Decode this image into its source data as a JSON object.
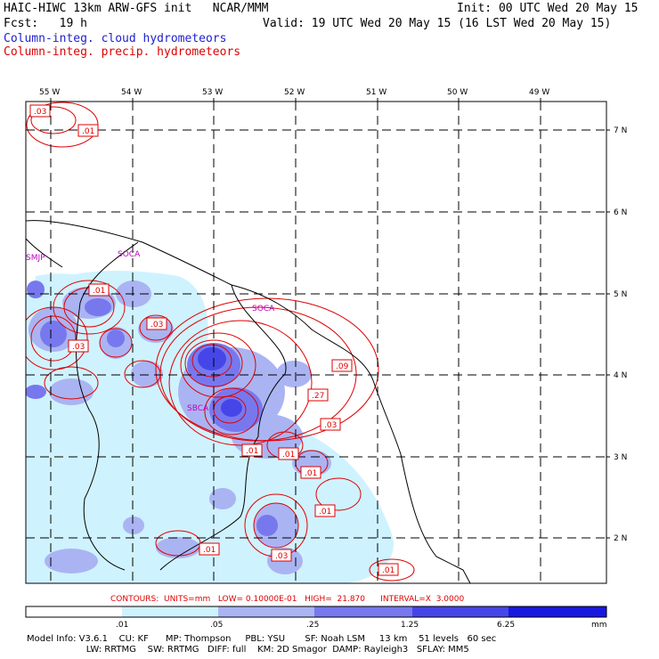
{
  "header": {
    "title_left": "HAIC-HIWC 13km ARW-GFS init   NCAR/MMM",
    "init": "Init: 00 UTC Wed 20 May 15",
    "fcst": "Fcst:   19 h",
    "valid": "Valid: 19 UTC Wed 20 May 15 (16 LST Wed 20 May 15)",
    "field1": "Column-integ. cloud hydrometeors",
    "field2": "Column-integ. precip. hydrometeors"
  },
  "map": {
    "lon_labels": [
      "55 W",
      "54 W",
      "53 W",
      "52 W",
      "51 W",
      "50 W",
      "49 W"
    ],
    "lat_labels": [
      "7 N",
      "6 N",
      "5 N",
      "4 N",
      "3 N",
      "2 N"
    ],
    "station_labels": [
      "SMJP",
      "SOCA",
      "SOCA",
      "SBCA"
    ],
    "contour_labels": [
      ".03",
      ".01",
      ".01",
      ".03",
      ".03",
      ".09",
      ".27",
      ".03",
      ".01",
      ".01",
      ".01",
      ".01",
      ".01",
      ".03",
      ".01"
    ]
  },
  "contour_info": "CONTOURS:  UNITS=mm   LOW= 0.10000E-01   HIGH=  21.870      INTERVAL=X  3.0000",
  "colorbar": {
    "ticks": [
      ".01",
      ".05",
      ".25",
      "1.25",
      "6.25"
    ],
    "units": "mm",
    "colors": [
      "#ffffff",
      "#cff2ff",
      "#aab4f2",
      "#7878ee",
      "#4646e8",
      "#1818e0"
    ]
  },
  "model_info": {
    "line1": "Model Info: V3.6.1    CU: KF      MP: Thompson     PBL: YSU       SF: Noah LSM     13 km    51 levels   60 sec",
    "line2": "                     LW: RRTMG    SW: RRTMG   DIFF: full    KM: 2D Smagor  DAMP: Rayleigh3   SFLAY: MM5"
  }
}
